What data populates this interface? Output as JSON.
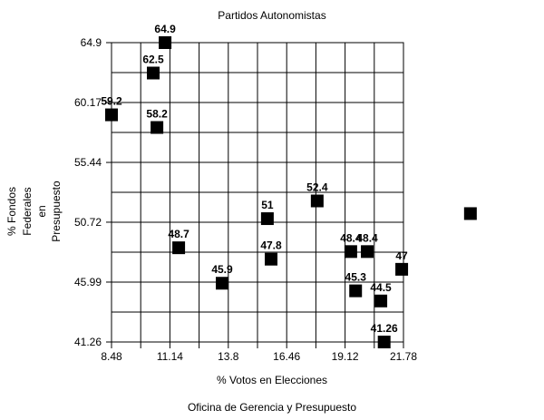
{
  "chart_data": {
    "type": "scatter",
    "title": "Partidos Autonomistas",
    "xlabel": "% Votos en Elecciones",
    "ylabel": "% Fondos Federales en Presupuesto",
    "ylabel_lines": [
      "% Fondos",
      "Federales",
      "en",
      "Presupuesto"
    ],
    "footer": "Oficina de Gerencia y Presupuesto",
    "x_ticks": [
      "8.48",
      "11.14",
      "13.8",
      "16.46",
      "19.12",
      "21.78"
    ],
    "y_ticks": [
      "41.26",
      "45.99",
      "50.72",
      "55.44",
      "60.17",
      "64.9"
    ],
    "x_range": [
      8.48,
      21.78
    ],
    "y_range": [
      41.26,
      64.9
    ],
    "x_gridline_count": 11,
    "y_gridline_count": 11,
    "grid": true,
    "legend": false,
    "axis_color": "#000000",
    "marker": {
      "shape": "square",
      "color": "#000000",
      "size": 14
    },
    "points": [
      {
        "x": 10.92,
        "y": 64.9,
        "label": "64.9"
      },
      {
        "x": 10.38,
        "y": 62.5,
        "label": "62.5"
      },
      {
        "x": 8.48,
        "y": 59.2,
        "label": "59.2"
      },
      {
        "x": 10.55,
        "y": 58.2,
        "label": "58.2"
      },
      {
        "x": 11.54,
        "y": 48.7,
        "label": "48.7"
      },
      {
        "x": 13.52,
        "y": 45.9,
        "label": "45.9"
      },
      {
        "x": 15.58,
        "y": 51,
        "label": "51"
      },
      {
        "x": 15.75,
        "y": 47.8,
        "label": "47.8"
      },
      {
        "x": 17.85,
        "y": 52.4,
        "label": "52.4"
      },
      {
        "x": 19.38,
        "y": 48.4,
        "label": "48.4"
      },
      {
        "x": 20.13,
        "y": 48.4,
        "label": "48.4"
      },
      {
        "x": 21.7,
        "y": 47,
        "label": "47"
      },
      {
        "x": 19.6,
        "y": 45.3,
        "label": "45.3"
      },
      {
        "x": 20.75,
        "y": 44.5,
        "label": "44.5"
      },
      {
        "x": 20.9,
        "y": 41.26,
        "label": "41.26"
      },
      {
        "x": 24.83,
        "y": 51.4,
        "label": ""
      }
    ]
  }
}
